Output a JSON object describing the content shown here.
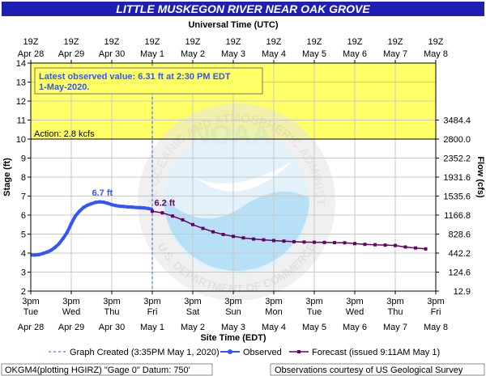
{
  "header": {
    "title": "LITTLE MUSKEGON RIVER NEAR OAK GROVE",
    "title_bg": "#1f1fb4",
    "utc_label": "Universal Time (UTC)"
  },
  "top_axis_ticks": [
    {
      "l1": "19Z",
      "l2": "Apr 28"
    },
    {
      "l1": "19Z",
      "l2": "Apr 29"
    },
    {
      "l1": "19Z",
      "l2": "Apr 30"
    },
    {
      "l1": "19Z",
      "l2": "May 1"
    },
    {
      "l1": "19Z",
      "l2": "May 2"
    },
    {
      "l1": "19Z",
      "l2": "May 3"
    },
    {
      "l1": "19Z",
      "l2": "May 4"
    },
    {
      "l1": "19Z",
      "l2": "May 5"
    },
    {
      "l1": "19Z",
      "l2": "May 6"
    },
    {
      "l1": "19Z",
      "l2": "May 7"
    },
    {
      "l1": "19Z",
      "l2": "May 8"
    }
  ],
  "bottom_axis_ticks": [
    {
      "l1": "3pm",
      "l2": "Tue",
      "l3": "Apr 28"
    },
    {
      "l1": "3pm",
      "l2": "Wed",
      "l3": "Apr 29"
    },
    {
      "l1": "3pm",
      "l2": "Thu",
      "l3": "Apr 30"
    },
    {
      "l1": "3pm",
      "l2": "Fri",
      "l3": "May 1"
    },
    {
      "l1": "3pm",
      "l2": "Sat",
      "l3": "May 2"
    },
    {
      "l1": "3pm",
      "l2": "Sun",
      "l3": "May 3"
    },
    {
      "l1": "3pm",
      "l2": "Mon",
      "l3": "May 4"
    },
    {
      "l1": "3pm",
      "l2": "Tue",
      "l3": "May 5"
    },
    {
      "l1": "3pm",
      "l2": "Wed",
      "l3": "May 6"
    },
    {
      "l1": "3pm",
      "l2": "Thu",
      "l3": "May 7"
    },
    {
      "l1": "3pm",
      "l2": "Fri",
      "l3": "May 8"
    }
  ],
  "chart_data": {
    "type": "line",
    "title": "LITTLE MUSKEGON RIVER NEAR OAK GROVE",
    "xlabel": "Site Time (EDT)",
    "xlabel_top": "Universal Time (UTC)",
    "ylabel": "Stage (ft)",
    "ylabel_right": "Flow (cfs)",
    "x_unit": "days after 3pm EDT Apr 28",
    "xlim": [
      0,
      10
    ],
    "ylim": [
      2,
      14
    ],
    "yticks": [
      2,
      3,
      4,
      5,
      6,
      7,
      8,
      9,
      10,
      11,
      12,
      13,
      14
    ],
    "right_ticks": [
      {
        "stage": 2.0,
        "label": "12.9"
      },
      {
        "stage": 3.0,
        "label": "124.6"
      },
      {
        "stage": 4.0,
        "label": "442.2"
      },
      {
        "stage": 5.0,
        "label": "828.6"
      },
      {
        "stage": 6.0,
        "label": "1166.8"
      },
      {
        "stage": 7.0,
        "label": "1535.6"
      },
      {
        "stage": 8.0,
        "label": "1931.6"
      },
      {
        "stage": 9.0,
        "label": "2352.2"
      },
      {
        "stage": 10.0,
        "label": "2800.0"
      },
      {
        "stage": 11.0,
        "label": "3484.4"
      }
    ],
    "grid": true,
    "action_band": {
      "from": 10,
      "to": 14,
      "color": "#ffff66",
      "label": "Action:  2.8 kcfs"
    },
    "graph_created_x": 3.0,
    "series": [
      {
        "name": "Observed",
        "color": "#3355ff",
        "x": [
          0.0,
          0.1,
          0.2,
          0.3,
          0.4,
          0.5,
          0.6,
          0.7,
          0.8,
          0.9,
          1.0,
          1.1,
          1.2,
          1.3,
          1.4,
          1.5,
          1.6,
          1.7,
          1.8,
          1.9,
          2.0,
          2.1,
          2.2,
          2.3,
          2.4,
          2.5,
          2.6,
          2.7,
          2.8,
          2.9,
          2.98
        ],
        "y": [
          3.9,
          3.9,
          3.92,
          3.98,
          4.05,
          4.15,
          4.3,
          4.5,
          4.78,
          5.1,
          5.55,
          5.95,
          6.2,
          6.4,
          6.52,
          6.6,
          6.67,
          6.7,
          6.68,
          6.62,
          6.55,
          6.5,
          6.47,
          6.45,
          6.43,
          6.42,
          6.4,
          6.39,
          6.38,
          6.35,
          6.31
        ]
      },
      {
        "name": "Forecast (issued 9:11AM May 1)",
        "color": "#660066",
        "x": [
          3.0,
          3.25,
          3.5,
          3.75,
          4.0,
          4.25,
          4.5,
          4.75,
          5.0,
          5.25,
          5.5,
          5.75,
          6.0,
          6.25,
          6.5,
          6.75,
          7.0,
          7.25,
          7.5,
          7.75,
          8.0,
          8.25,
          8.5,
          8.75,
          9.0,
          9.25,
          9.5,
          9.75
        ],
        "y": [
          6.2,
          6.12,
          5.95,
          5.75,
          5.5,
          5.3,
          5.12,
          4.98,
          4.88,
          4.8,
          4.74,
          4.7,
          4.66,
          4.63,
          4.6,
          4.58,
          4.57,
          4.56,
          4.55,
          4.54,
          4.5,
          4.46,
          4.44,
          4.42,
          4.4,
          4.32,
          4.27,
          4.22
        ]
      }
    ],
    "annotations": [
      {
        "text": "6.7 ft",
        "x": 1.75,
        "y": 6.72,
        "color": "#3355ff"
      },
      {
        "text": "6.2 ft",
        "x": 3.05,
        "y": 6.2,
        "color": "#660066"
      }
    ]
  },
  "latest_box": {
    "line1": "Latest observed value: 6.31 ft at 2:30 PM EDT",
    "line2": "1-May-2020."
  },
  "legend": {
    "created": "Graph Created (3:35PM May 1, 2020)",
    "observed": "Observed",
    "forecast": "Forecast (issued 9:11AM May 1)"
  },
  "footer": {
    "left": "OKGM4(plotting HGIRZ) \"Gage 0\" Datum: 750'",
    "right": "Observations courtesy of US Geological Survey"
  },
  "watermark": {
    "top_text": "NATIONAL OCEANIC AND ATMOSPHERIC ADMINISTRATION",
    "bottom_text": "U.S. DEPARTMENT OF COMMERCE",
    "center_text": "NOAA"
  }
}
